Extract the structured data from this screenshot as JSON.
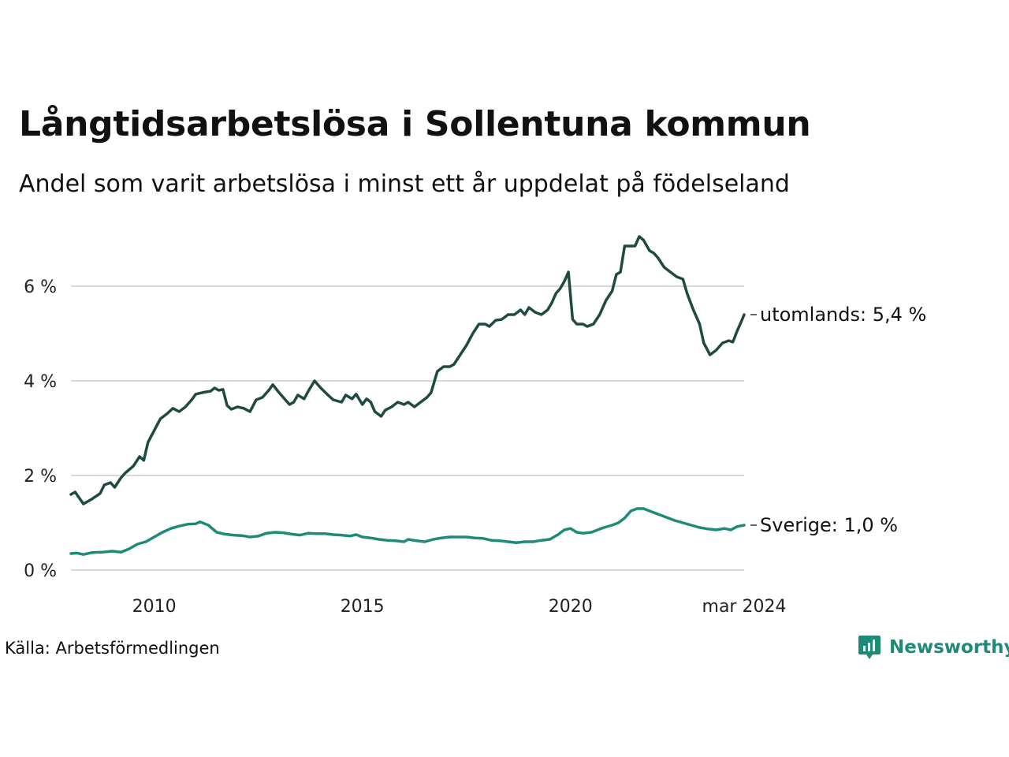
{
  "title": "Långtidsarbetslösa i Sollentuna kommun",
  "subtitle": "Andel som varit arbetslösa i minst ett år uppdelat på födelseland",
  "source": "Källa: Arbetsförmedlingen",
  "brand": {
    "name": "Newsworthy",
    "icon": "newsworthy-logo-icon",
    "color": "#1e8a78"
  },
  "chart_data": {
    "type": "line",
    "title": "Långtidsarbetslösa i Sollentuna kommun",
    "xlabel": "",
    "ylabel": "",
    "x_range": [
      2008.0,
      2024.17
    ],
    "ylim": [
      0,
      7.2
    ],
    "yticks": [
      0,
      2,
      4,
      6
    ],
    "ytick_labels": [
      "0 %",
      "2 %",
      "4 %",
      "6 %"
    ],
    "xticks": [
      2010,
      2015,
      2020,
      2024.17
    ],
    "xtick_labels": [
      "2010",
      "2015",
      "2020",
      "mar 2024"
    ],
    "grid": true,
    "series": [
      {
        "name": "utomlands",
        "end_label": "utomlands: 5,4 %",
        "color": "#1f4a42",
        "points": [
          [
            2008.0,
            1.6
          ],
          [
            2008.1,
            1.65
          ],
          [
            2008.3,
            1.4
          ],
          [
            2008.5,
            1.5
          ],
          [
            2008.7,
            1.62
          ],
          [
            2008.8,
            1.8
          ],
          [
            2008.95,
            1.85
          ],
          [
            2009.05,
            1.75
          ],
          [
            2009.2,
            1.95
          ],
          [
            2009.3,
            2.05
          ],
          [
            2009.5,
            2.2
          ],
          [
            2009.65,
            2.4
          ],
          [
            2009.75,
            2.32
          ],
          [
            2009.85,
            2.7
          ],
          [
            2010.0,
            2.95
          ],
          [
            2010.15,
            3.2
          ],
          [
            2010.3,
            3.3
          ],
          [
            2010.45,
            3.42
          ],
          [
            2010.6,
            3.35
          ],
          [
            2010.75,
            3.45
          ],
          [
            2010.9,
            3.6
          ],
          [
            2011.0,
            3.72
          ],
          [
            2011.2,
            3.76
          ],
          [
            2011.35,
            3.78
          ],
          [
            2011.45,
            3.85
          ],
          [
            2011.55,
            3.8
          ],
          [
            2011.65,
            3.82
          ],
          [
            2011.75,
            3.48
          ],
          [
            2011.85,
            3.4
          ],
          [
            2012.0,
            3.45
          ],
          [
            2012.15,
            3.42
          ],
          [
            2012.3,
            3.35
          ],
          [
            2012.45,
            3.6
          ],
          [
            2012.6,
            3.65
          ],
          [
            2012.75,
            3.8
          ],
          [
            2012.85,
            3.92
          ],
          [
            2013.0,
            3.75
          ],
          [
            2013.15,
            3.6
          ],
          [
            2013.25,
            3.5
          ],
          [
            2013.35,
            3.55
          ],
          [
            2013.45,
            3.7
          ],
          [
            2013.6,
            3.62
          ],
          [
            2013.7,
            3.78
          ],
          [
            2013.85,
            4.0
          ],
          [
            2014.0,
            3.85
          ],
          [
            2014.15,
            3.72
          ],
          [
            2014.3,
            3.6
          ],
          [
            2014.5,
            3.55
          ],
          [
            2014.6,
            3.7
          ],
          [
            2014.75,
            3.62
          ],
          [
            2014.85,
            3.72
          ],
          [
            2015.0,
            3.5
          ],
          [
            2015.1,
            3.62
          ],
          [
            2015.2,
            3.55
          ],
          [
            2015.3,
            3.35
          ],
          [
            2015.45,
            3.25
          ],
          [
            2015.55,
            3.38
          ],
          [
            2015.7,
            3.45
          ],
          [
            2015.85,
            3.55
          ],
          [
            2016.0,
            3.5
          ],
          [
            2016.1,
            3.55
          ],
          [
            2016.25,
            3.45
          ],
          [
            2016.4,
            3.55
          ],
          [
            2016.55,
            3.65
          ],
          [
            2016.65,
            3.75
          ],
          [
            2016.8,
            4.2
          ],
          [
            2016.95,
            4.3
          ],
          [
            2017.1,
            4.3
          ],
          [
            2017.2,
            4.35
          ],
          [
            2017.35,
            4.55
          ],
          [
            2017.5,
            4.75
          ],
          [
            2017.65,
            5.0
          ],
          [
            2017.8,
            5.2
          ],
          [
            2017.95,
            5.2
          ],
          [
            2018.05,
            5.15
          ],
          [
            2018.2,
            5.28
          ],
          [
            2018.35,
            5.3
          ],
          [
            2018.5,
            5.4
          ],
          [
            2018.65,
            5.4
          ],
          [
            2018.8,
            5.5
          ],
          [
            2018.9,
            5.4
          ],
          [
            2019.0,
            5.55
          ],
          [
            2019.15,
            5.45
          ],
          [
            2019.3,
            5.4
          ],
          [
            2019.45,
            5.5
          ],
          [
            2019.55,
            5.65
          ],
          [
            2019.65,
            5.85
          ],
          [
            2019.75,
            5.95
          ],
          [
            2019.85,
            6.1
          ],
          [
            2019.95,
            6.3
          ],
          [
            2020.05,
            5.3
          ],
          [
            2020.15,
            5.2
          ],
          [
            2020.3,
            5.2
          ],
          [
            2020.4,
            5.15
          ],
          [
            2020.55,
            5.2
          ],
          [
            2020.7,
            5.4
          ],
          [
            2020.85,
            5.7
          ],
          [
            2021.0,
            5.9
          ],
          [
            2021.1,
            6.25
          ],
          [
            2021.2,
            6.3
          ],
          [
            2021.3,
            6.85
          ],
          [
            2021.45,
            6.85
          ],
          [
            2021.55,
            6.85
          ],
          [
            2021.65,
            7.05
          ],
          [
            2021.75,
            6.98
          ],
          [
            2021.9,
            6.75
          ],
          [
            2022.0,
            6.7
          ],
          [
            2022.1,
            6.6
          ],
          [
            2022.25,
            6.4
          ],
          [
            2022.4,
            6.3
          ],
          [
            2022.55,
            6.2
          ],
          [
            2022.7,
            6.15
          ],
          [
            2022.8,
            5.85
          ],
          [
            2022.95,
            5.5
          ],
          [
            2023.1,
            5.2
          ],
          [
            2023.2,
            4.8
          ],
          [
            2023.35,
            4.55
          ],
          [
            2023.5,
            4.65
          ],
          [
            2023.65,
            4.8
          ],
          [
            2023.8,
            4.85
          ],
          [
            2023.9,
            4.82
          ],
          [
            2024.0,
            5.05
          ],
          [
            2024.1,
            5.25
          ],
          [
            2024.17,
            5.4
          ]
        ]
      },
      {
        "name": "Sverige",
        "end_label": "Sverige: 1,0 %",
        "color": "#1e8a78",
        "points": [
          [
            2008.0,
            0.35
          ],
          [
            2008.15,
            0.36
          ],
          [
            2008.3,
            0.33
          ],
          [
            2008.5,
            0.37
          ],
          [
            2008.75,
            0.38
          ],
          [
            2009.0,
            0.4
          ],
          [
            2009.2,
            0.38
          ],
          [
            2009.4,
            0.45
          ],
          [
            2009.6,
            0.55
          ],
          [
            2009.8,
            0.6
          ],
          [
            2010.0,
            0.7
          ],
          [
            2010.2,
            0.8
          ],
          [
            2010.4,
            0.88
          ],
          [
            2010.6,
            0.93
          ],
          [
            2010.8,
            0.97
          ],
          [
            2011.0,
            0.98
          ],
          [
            2011.1,
            1.02
          ],
          [
            2011.3,
            0.95
          ],
          [
            2011.5,
            0.8
          ],
          [
            2011.7,
            0.76
          ],
          [
            2011.9,
            0.74
          ],
          [
            2012.1,
            0.73
          ],
          [
            2012.3,
            0.7
          ],
          [
            2012.5,
            0.72
          ],
          [
            2012.7,
            0.78
          ],
          [
            2012.9,
            0.8
          ],
          [
            2013.1,
            0.79
          ],
          [
            2013.3,
            0.76
          ],
          [
            2013.5,
            0.74
          ],
          [
            2013.7,
            0.78
          ],
          [
            2013.9,
            0.77
          ],
          [
            2014.1,
            0.77
          ],
          [
            2014.3,
            0.75
          ],
          [
            2014.5,
            0.74
          ],
          [
            2014.7,
            0.72
          ],
          [
            2014.85,
            0.75
          ],
          [
            2015.0,
            0.7
          ],
          [
            2015.2,
            0.68
          ],
          [
            2015.4,
            0.65
          ],
          [
            2015.6,
            0.63
          ],
          [
            2015.8,
            0.62
          ],
          [
            2016.0,
            0.6
          ],
          [
            2016.1,
            0.65
          ],
          [
            2016.3,
            0.62
          ],
          [
            2016.5,
            0.6
          ],
          [
            2016.7,
            0.65
          ],
          [
            2016.9,
            0.68
          ],
          [
            2017.1,
            0.7
          ],
          [
            2017.3,
            0.7
          ],
          [
            2017.5,
            0.7
          ],
          [
            2017.7,
            0.68
          ],
          [
            2017.9,
            0.67
          ],
          [
            2018.1,
            0.63
          ],
          [
            2018.3,
            0.62
          ],
          [
            2018.5,
            0.6
          ],
          [
            2018.7,
            0.58
          ],
          [
            2018.9,
            0.6
          ],
          [
            2019.1,
            0.6
          ],
          [
            2019.3,
            0.63
          ],
          [
            2019.5,
            0.65
          ],
          [
            2019.7,
            0.75
          ],
          [
            2019.85,
            0.85
          ],
          [
            2020.0,
            0.88
          ],
          [
            2020.15,
            0.8
          ],
          [
            2020.3,
            0.78
          ],
          [
            2020.5,
            0.8
          ],
          [
            2020.65,
            0.85
          ],
          [
            2020.8,
            0.9
          ],
          [
            2021.0,
            0.95
          ],
          [
            2021.15,
            1.0
          ],
          [
            2021.3,
            1.1
          ],
          [
            2021.45,
            1.25
          ],
          [
            2021.6,
            1.3
          ],
          [
            2021.75,
            1.3
          ],
          [
            2021.9,
            1.25
          ],
          [
            2022.05,
            1.2
          ],
          [
            2022.2,
            1.15
          ],
          [
            2022.35,
            1.1
          ],
          [
            2022.5,
            1.05
          ],
          [
            2022.7,
            1.0
          ],
          [
            2022.9,
            0.95
          ],
          [
            2023.1,
            0.9
          ],
          [
            2023.3,
            0.87
          ],
          [
            2023.5,
            0.85
          ],
          [
            2023.7,
            0.88
          ],
          [
            2023.85,
            0.85
          ],
          [
            2024.0,
            0.92
          ],
          [
            2024.17,
            0.95
          ]
        ]
      }
    ]
  }
}
